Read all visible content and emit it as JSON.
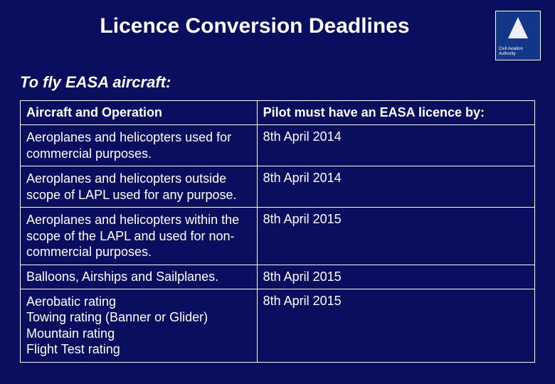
{
  "colors": {
    "background": "#0a0e5e",
    "text": "#ffffff",
    "border": "#ffffff",
    "logo_bg": "#123688"
  },
  "header": {
    "title": "Licence Conversion Deadlines",
    "logo_text1": "Civil Aviation",
    "logo_text2": "Authority"
  },
  "subtitle": "To fly EASA aircraft:",
  "table": {
    "columns": [
      "Aircraft and Operation",
      "Pilot must have an EASA licence by:"
    ],
    "rows": [
      {
        "col1": "Aeroplanes and helicopters used for commercial purposes.",
        "col2": "8th April 2014"
      },
      {
        "col1": "Aeroplanes and helicopters outside scope of LAPL used for any purpose.",
        "col2": "8th April 2014"
      },
      {
        "col1": "Aeroplanes and helicopters within the scope of the LAPL and used for non-commercial purposes.",
        "col2": "8th April 2015"
      },
      {
        "col1": "Balloons, Airships and Sailplanes.",
        "col2": "8th April 2015"
      },
      {
        "col1": "Aerobatic rating\nTowing rating (Banner or Glider)\nMountain rating\nFlight Test rating",
        "col2": "8th April 2015"
      }
    ]
  }
}
